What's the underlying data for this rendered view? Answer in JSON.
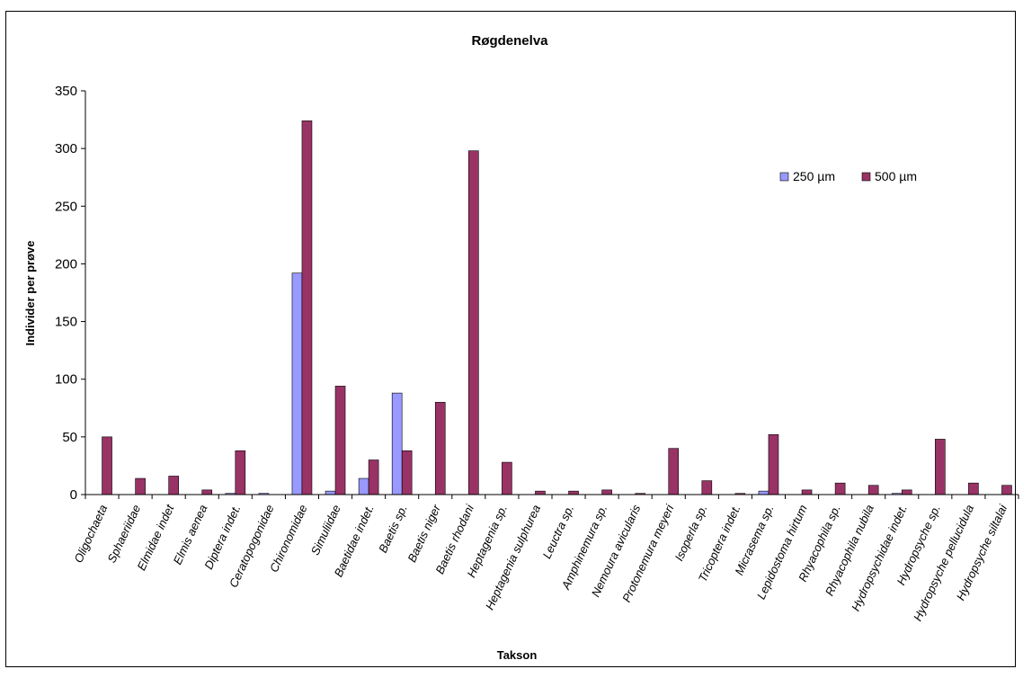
{
  "chart_data": {
    "type": "bar",
    "title": "Røgdenelva",
    "xlabel": "Takson",
    "ylabel": "Individer per prøve",
    "ylim": [
      0,
      350
    ],
    "yticks": [
      0,
      50,
      100,
      150,
      200,
      250,
      300,
      350
    ],
    "grid": false,
    "legend_position": "right",
    "categories": [
      "Oligochaeta",
      "Sphaeriidae",
      "Elmidae  indet",
      "Elmis aenea",
      "Diptera indet.",
      "Ceratopogonidae",
      "Chironomidae",
      "Simuliidae",
      "Baetidae indet.",
      "Baetis sp.",
      "Baetis niger",
      "Baetis rhodani",
      "Heptagenia sp.",
      "Heptagenia sulphurea",
      "Leuctra sp.",
      "Amphinemura sp.",
      "Nemoura avicularis",
      "Protonemura meyeri",
      "Isoperla sp.",
      "Tricoptera indet.",
      "Micrasema sp.",
      "Lepidostoma hirtum",
      "Rhyacophila sp.",
      "Rhyacophila nubila",
      "Hydropsychidae indet.",
      "Hydropsyche sp.",
      "Hydropsyche pellucidula",
      "Hydropsyche siltalai"
    ],
    "series": [
      {
        "name": "250 µm",
        "color": "#9999ff",
        "values": [
          0,
          0,
          0,
          0,
          1,
          1,
          192,
          3,
          14,
          88,
          0,
          0,
          0,
          0,
          0,
          0,
          0,
          0,
          0,
          0,
          3,
          0,
          0,
          0,
          1,
          0,
          0,
          0
        ]
      },
      {
        "name": "500 µm",
        "color": "#993366",
        "values": [
          50,
          14,
          16,
          4,
          38,
          0,
          324,
          94,
          30,
          38,
          80,
          298,
          28,
          3,
          3,
          4,
          1,
          40,
          12,
          1,
          52,
          4,
          10,
          8,
          4,
          48,
          10,
          8
        ]
      }
    ]
  }
}
